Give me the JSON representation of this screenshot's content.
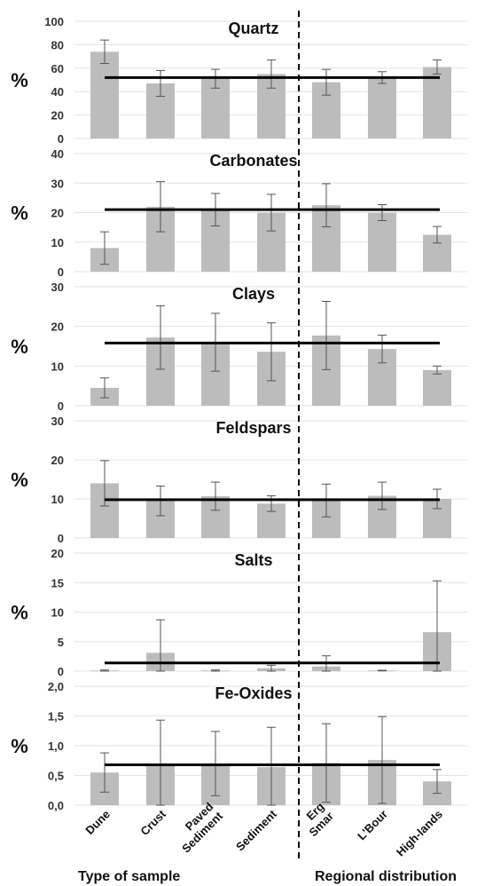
{
  "colors": {
    "bar": "#bcbcbc",
    "mean_line": "#000000",
    "error_bar": "#555555",
    "grid": "#e3e3e3",
    "divider": "#000000"
  },
  "categories": [
    "Dune",
    "Crust",
    "Paved\nSediment",
    "Sediment",
    "Erg\nSmar",
    "L'Bour",
    "High-lands"
  ],
  "groups": {
    "left": "Type of sample",
    "right": "Regional distribution"
  },
  "chart_data": [
    {
      "type": "bar",
      "title": "Quartz",
      "ylabel": "%",
      "ylim": [
        0,
        100
      ],
      "ticks": [
        "0",
        "20",
        "40",
        "60",
        "80",
        "100"
      ],
      "tick_values": [
        0,
        20,
        40,
        60,
        80,
        100
      ],
      "values": [
        74,
        47,
        51,
        55,
        48,
        52,
        61
      ],
      "error": [
        10,
        11,
        8,
        12,
        11,
        5,
        6
      ],
      "mean_line": 52
    },
    {
      "type": "bar",
      "title": "Carbonates",
      "ylabel": "%",
      "ylim": [
        0,
        40
      ],
      "ticks": [
        "0",
        "10",
        "20",
        "30",
        "40"
      ],
      "tick_values": [
        0,
        10,
        20,
        30,
        40
      ],
      "values": [
        8,
        22,
        21,
        20,
        22.5,
        20,
        12.5
      ],
      "error": [
        5.5,
        8.5,
        5.5,
        6.2,
        7.3,
        2.7,
        2.8
      ],
      "mean_line": 21
    },
    {
      "type": "bar",
      "title": "Clays",
      "ylabel": "%",
      "ylim": [
        0,
        30
      ],
      "ticks": [
        "0",
        "10",
        "20",
        "30"
      ],
      "tick_values": [
        0,
        10,
        20,
        30
      ],
      "values": [
        4.5,
        17.2,
        16,
        13.6,
        17.7,
        14.3,
        9
      ],
      "error": [
        2.5,
        8,
        7.3,
        7.3,
        8.6,
        3.5,
        1
      ],
      "mean_line": 15.8
    },
    {
      "type": "bar",
      "title": "Feldspars",
      "ylabel": "%",
      "ylim": [
        0,
        30
      ],
      "ticks": [
        "0",
        "10",
        "20",
        "30"
      ],
      "tick_values": [
        0,
        10,
        20,
        30
      ],
      "values": [
        14,
        9.5,
        10.7,
        8.8,
        9.6,
        10.8,
        10
      ],
      "error": [
        5.8,
        3.8,
        3.6,
        2,
        4.2,
        3.5,
        2.5
      ],
      "mean_line": 9.8
    },
    {
      "type": "bar",
      "title": "Salts",
      "ylabel": "%",
      "ylim": [
        0,
        20
      ],
      "ticks": [
        "0",
        "5",
        "10",
        "15",
        "20"
      ],
      "tick_values": [
        0,
        5,
        10,
        15,
        20
      ],
      "values": [
        0.1,
        3.1,
        0.1,
        0.5,
        0.8,
        0.1,
        6.6
      ],
      "error": [
        0.1,
        5.6,
        0.1,
        0.5,
        1.8,
        0.05,
        8.7
      ],
      "mean_line": 1.4
    },
    {
      "type": "bar",
      "title": "Fe-Oxides",
      "ylabel": "%",
      "ylim": [
        0,
        2
      ],
      "ticks": [
        "0,0",
        "0,5",
        "1,0",
        "1,5",
        "2,0"
      ],
      "tick_values": [
        0,
        0.5,
        1,
        1.5,
        2
      ],
      "values": [
        0.55,
        0.68,
        0.7,
        0.64,
        0.71,
        0.76,
        0.4
      ],
      "error": [
        0.33,
        0.75,
        0.54,
        0.67,
        0.66,
        0.73,
        0.2
      ],
      "mean_line": 0.68
    }
  ]
}
